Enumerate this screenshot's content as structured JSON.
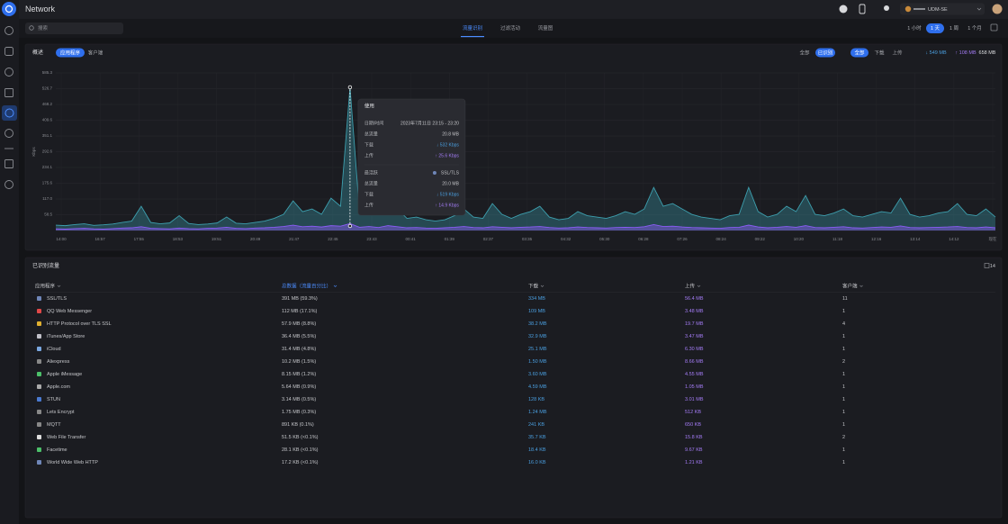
{
  "header": {
    "title": "Network",
    "device": "UDM-SE"
  },
  "toolbar": {
    "search": "搜索",
    "tabs": [
      "流量识别",
      "过滤活动",
      "流量图"
    ],
    "active_tab": 0,
    "ranges": [
      "1 小时",
      "1 天",
      "1 周",
      "1 个月"
    ],
    "active_range": 1
  },
  "overview": {
    "title": "概述",
    "views": [
      "应用程序",
      "客户端"
    ],
    "active_view": 0,
    "filters": [
      "全部",
      "已识别"
    ],
    "active_filter": 1,
    "series_all": "全部",
    "download_total": "↓ 549 MB",
    "upload_total": "↑ 108 MB",
    "total": "658 MB"
  },
  "chart_data": {
    "type": "area",
    "y_label": "Kbps",
    "ylim": [
      0,
      585.3
    ],
    "yticks": [
      58.5,
      {
        "value": 117,
        "label": "117.0"
      },
      175.6,
      234.1,
      292.6,
      351.1,
      409.6,
      468.2,
      526.7,
      585.3
    ],
    "grid": true,
    "x_labels": [
      "14:00",
      "16:57",
      "17:55",
      "18:53",
      "19:51",
      "20:49",
      "21:47",
      "22:45",
      "23:43",
      "00:41",
      "01:39",
      "02:37",
      "03:35",
      "04:32",
      "05:30",
      "06:28",
      "07:26",
      "08:24",
      "09:22",
      "10:20",
      "11:18",
      "12:16",
      "13:14",
      "14:12",
      "现在"
    ],
    "series": [
      {
        "name": "下载",
        "color": "#3d9fae",
        "values": [
          20,
          18,
          22,
          25,
          19,
          21,
          24,
          30,
          35,
          90,
          30,
          25,
          28,
          55,
          26,
          22,
          24,
          28,
          50,
          27,
          25,
          30,
          35,
          45,
          60,
          110,
          70,
          80,
          60,
          120,
          90,
          532,
          70,
          90,
          60,
          120,
          80,
          45,
          50,
          40,
          35,
          40,
          55,
          80,
          50,
          45,
          100,
          60,
          45,
          60,
          70,
          90,
          50,
          40,
          45,
          70,
          55,
          50,
          45,
          55,
          70,
          60,
          80,
          160,
          90,
          100,
          80,
          60,
          50,
          45,
          40,
          55,
          60,
          160,
          70,
          50,
          60,
          90,
          70,
          130,
          60,
          55,
          65,
          80,
          55,
          50,
          60,
          70,
          65,
          120,
          60,
          50,
          55,
          65,
          70,
          100,
          60,
          55,
          80,
          50
        ]
      },
      {
        "name": "上传",
        "color": "#8b5cf6",
        "values": [
          6,
          5,
          7,
          8,
          6,
          5,
          7,
          9,
          10,
          14,
          8,
          7,
          6,
          9,
          7,
          6,
          8,
          9,
          12,
          8,
          7,
          9,
          10,
          12,
          15,
          20,
          14,
          16,
          13,
          18,
          16,
          25.6,
          12,
          15,
          11,
          18,
          14,
          10,
          11,
          9,
          8,
          10,
          12,
          15,
          11,
          10,
          14,
          12,
          10,
          12,
          13,
          15,
          11,
          9,
          10,
          13,
          11,
          10,
          9,
          11,
          12,
          11,
          14,
          22,
          15,
          16,
          13,
          11,
          10,
          9,
          8,
          11,
          12,
          20,
          13,
          10,
          12,
          15,
          12,
          18,
          11,
          10,
          12,
          14,
          10,
          9,
          11,
          13,
          12,
          17,
          11,
          10,
          11,
          12,
          13,
          15,
          11,
          10,
          13,
          10
        ]
      }
    ],
    "tooltip": {
      "title": "使用",
      "rows": [
        [
          "日期/时间",
          "2023年7月11日 23:15 - 23:20"
        ],
        [
          "总流量",
          "20.8 MB"
        ],
        [
          "下载",
          "↓ 532 Kbps"
        ],
        [
          "上传",
          "↑ 25.6 Kbps"
        ]
      ],
      "top_title": "最活跃",
      "top_app": "SSL/TLS",
      "top_rows": [
        [
          "总流量",
          "20.0 MB"
        ],
        [
          "下载",
          "↓ 519 Kbps"
        ],
        [
          "上传",
          "↑ 14.9 Kbps"
        ]
      ]
    }
  },
  "table": {
    "title": "已识别流量",
    "count": 14,
    "columns": [
      "应用程序",
      "总数据（流量百分比）",
      "下载",
      "上传",
      "客户端"
    ],
    "rows": [
      [
        "SSL/TLS",
        "391 MB (59.3%)",
        "334 MB",
        "56.4 MB",
        "11"
      ],
      [
        "QQ Web Messenger",
        "112 MB (17.1%)",
        "109 MB",
        "3.48 MB",
        "1"
      ],
      [
        "HTTP Protocol over TLS SSL",
        "57.9 MB (8.8%)",
        "38.2 MB",
        "19.7 MB",
        "4"
      ],
      [
        "iTunes/App Store",
        "36.4 MB (5.5%)",
        "32.9 MB",
        "3.47 MB",
        "1"
      ],
      [
        "iCloud",
        "31.4 MB (4.8%)",
        "25.1 MB",
        "6.30 MB",
        "1"
      ],
      [
        "Aliexpress",
        "10.2 MB (1.5%)",
        "1.50 MB",
        "8.66 MB",
        "2"
      ],
      [
        "Apple iMessage",
        "8.15 MB (1.2%)",
        "3.60 MB",
        "4.55 MB",
        "1"
      ],
      [
        "Apple.com",
        "5.64 MB (0.9%)",
        "4.59 MB",
        "1.05 MB",
        "1"
      ],
      [
        "STUN",
        "3.14 MB (0.5%)",
        "128 KB",
        "3.01 MB",
        "1"
      ],
      [
        "Lets Encrypt",
        "1.75 MB (0.3%)",
        "1.24 MB",
        "512 KB",
        "1"
      ],
      [
        "MQTT",
        "891 KB (0.1%)",
        "241 KB",
        "650 KB",
        "1"
      ],
      [
        "Web File Transfer",
        "51.5 KB (<0.1%)",
        "35.7 KB",
        "15.8 KB",
        "2"
      ],
      [
        "Facetime",
        "28.1 KB (<0.1%)",
        "18.4 KB",
        "9.67 KB",
        "1"
      ],
      [
        "World Wide Web HTTP",
        "17.2 KB (<0.1%)",
        "16.0 KB",
        "1.21 KB",
        "1"
      ]
    ]
  }
}
